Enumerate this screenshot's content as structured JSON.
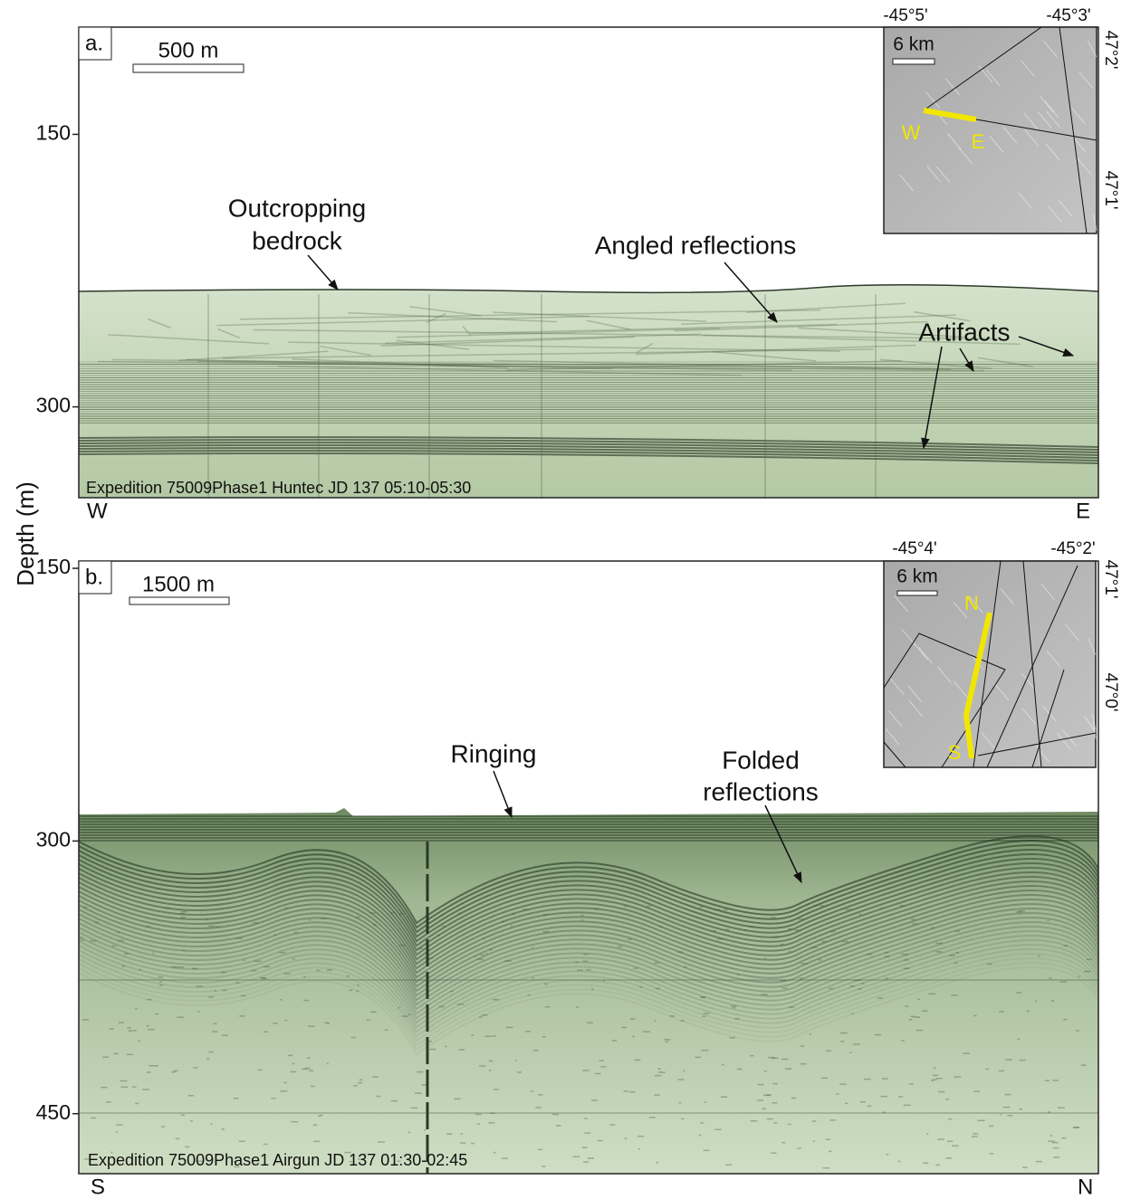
{
  "y_axis_label": "Depth (m)",
  "panels": [
    {
      "label": "a.",
      "scale_bar": "500 m",
      "ylim": [
        91,
        350
      ],
      "yticks": [
        150,
        300
      ],
      "caption": "Expedition 75009Phase1 Huntec JD 137 05:10-05:30",
      "left_end": "W",
      "right_end": "E",
      "annotations": [
        [
          "Outcropping",
          "bedrock"
        ],
        [
          "Angled reflections"
        ],
        [
          "Artifacts"
        ]
      ],
      "inset": {
        "scale": "6 km",
        "lon_ticks": [
          "-45°5'",
          "-45°3'"
        ],
        "lat_ticks": [
          "47°2'",
          "47°1'"
        ],
        "track_labels": [
          "W",
          "E"
        ]
      }
    },
    {
      "label": "b.",
      "scale_bar": "1500 m",
      "ylim": [
        146,
        483
      ],
      "yticks": [
        150,
        300,
        450
      ],
      "caption": "Expedition 75009Phase1 Airgun JD 137 01:30-02:45",
      "left_end": "S",
      "right_end": "N",
      "annotations": [
        [
          "Ringing"
        ],
        [
          "Folded",
          "reflections"
        ]
      ],
      "inset": {
        "scale": "6 km",
        "lon_ticks": [
          "-45°4'",
          "-45°2'"
        ],
        "lat_ticks": [
          "47°1'",
          "47°0'"
        ],
        "track_labels": [
          "N",
          "S"
        ]
      }
    }
  ]
}
